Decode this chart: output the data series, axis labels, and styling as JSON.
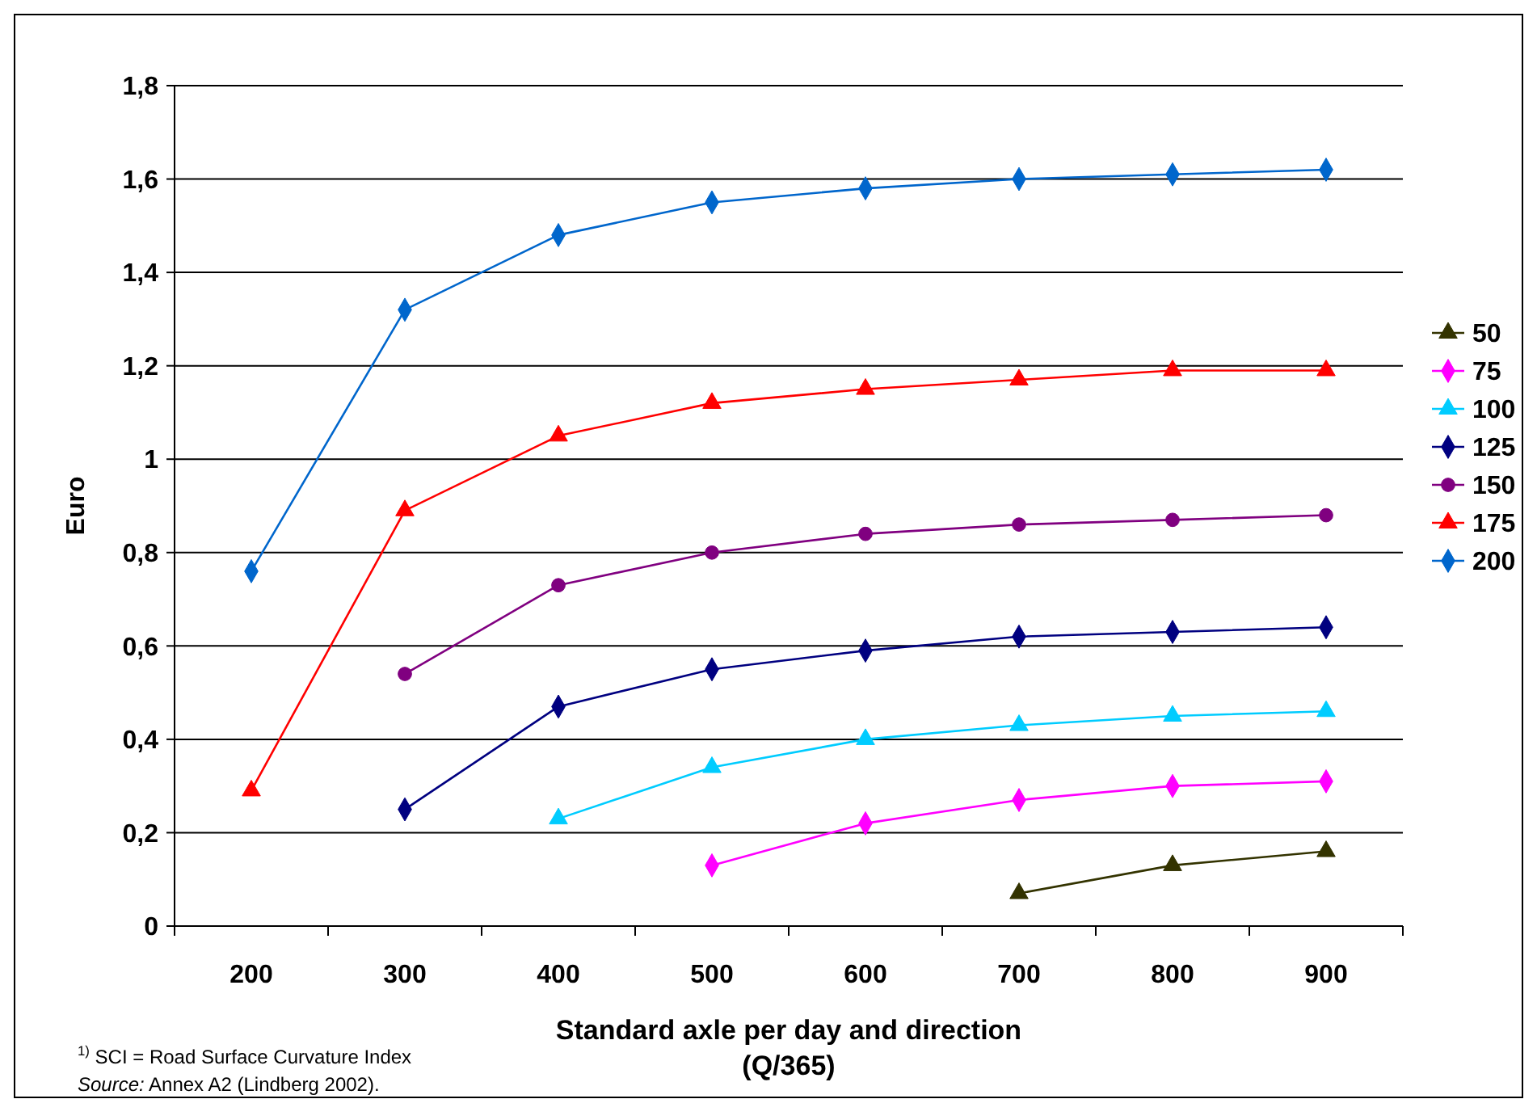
{
  "chart_data": {
    "type": "line",
    "xlabel": "Standard axle per day and direction\n(Q/365)",
    "ylabel": "Euro",
    "categories": [
      "200",
      "300",
      "400",
      "500",
      "600",
      "700",
      "800",
      "900"
    ],
    "ylim": [
      0,
      1.8
    ],
    "yticks": [
      0,
      {
        "value": 0.2,
        "label": "0,2"
      },
      {
        "value": 0.4,
        "label": "0,4"
      },
      {
        "value": 0.6,
        "label": "0,6"
      },
      {
        "value": 0.8,
        "label": "0,8"
      },
      1,
      {
        "value": 1.2,
        "label": "1,2"
      },
      {
        "value": 1.4,
        "label": "1,4"
      },
      {
        "value": 1.6,
        "label": "1,6"
      },
      {
        "value": 1.8,
        "label": "1,8"
      }
    ],
    "grid": "y",
    "legend": "right",
    "series": [
      {
        "name": "50",
        "color": "#333300",
        "marker": "triangle",
        "values": [
          null,
          null,
          null,
          null,
          null,
          0.07,
          0.13,
          0.16
        ]
      },
      {
        "name": "75",
        "color": "#ff00ff",
        "marker": "diamond",
        "values": [
          null,
          null,
          null,
          0.13,
          0.22,
          0.27,
          0.3,
          0.31
        ]
      },
      {
        "name": "100",
        "color": "#00ccff",
        "marker": "triangle",
        "values": [
          null,
          null,
          0.23,
          0.34,
          0.4,
          0.43,
          0.45,
          0.46
        ]
      },
      {
        "name": "125",
        "color": "#000080",
        "marker": "diamond",
        "values": [
          null,
          0.25,
          0.47,
          0.55,
          0.59,
          0.62,
          0.63,
          0.64
        ]
      },
      {
        "name": "150",
        "color": "#800080",
        "marker": "circle",
        "values": [
          null,
          0.54,
          0.73,
          0.8,
          0.84,
          0.86,
          0.87,
          0.88
        ]
      },
      {
        "name": "175",
        "color": "#ff0000",
        "marker": "triangle",
        "values": [
          0.29,
          0.89,
          1.05,
          1.12,
          1.15,
          1.17,
          1.19,
          1.19
        ]
      },
      {
        "name": "200",
        "color": "#0066cc",
        "marker": "diamond",
        "values": [
          0.76,
          1.32,
          1.48,
          1.55,
          1.58,
          1.6,
          1.61,
          1.62
        ]
      }
    ],
    "annotations": [
      "$^{1)}$ SCI = Road Surface Curvature Index",
      "Source: Annex A2 (Lindberg 2002)."
    ]
  }
}
